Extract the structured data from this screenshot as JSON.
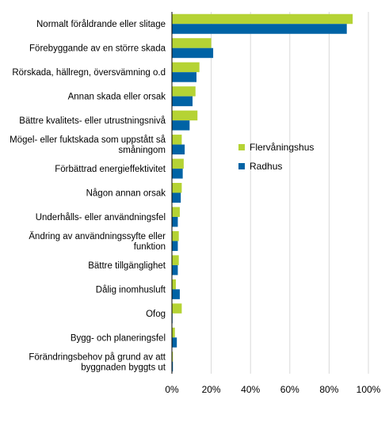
{
  "chart_data": {
    "type": "bar",
    "orientation": "horizontal",
    "categories": [
      "Normalt föråldrande eller slitage",
      "Förebyggande av en större skada",
      "Rörskada, hällregn, översvämning o.d",
      "Annan skada eller orsak",
      "Bättre kvalitets- eller utrustningsnivå",
      "Mögel- eller fuktskada som uppstått så småningom",
      "Förbättrad energieffektivitet",
      "Någon annan orsak",
      "Underhålls- eller användningsfel",
      "Ändring av användningssyfte eller funktion",
      "Bättre tillgänglighet",
      "Dålig inomhusluft",
      "Ofog",
      "Bygg- och planeringsfel",
      "Förändringsbehov på grund av att byggnaden byggts ut"
    ],
    "category_lines": [
      [
        "Normalt föråldrande eller slitage"
      ],
      [
        "Förebyggande av en större skada"
      ],
      [
        "Rörskada, hällregn, översvämning o.d"
      ],
      [
        "Annan skada eller orsak"
      ],
      [
        "Bättre kvalitets- eller utrustningsnivå"
      ],
      [
        "Mögel- eller fuktskada som uppstått så",
        "småningom"
      ],
      [
        "Förbättrad energieffektivitet"
      ],
      [
        "Någon annan orsak"
      ],
      [
        "Underhålls- eller användningsfel"
      ],
      [
        "Ändring av användningssyfte eller",
        "funktion"
      ],
      [
        "Bättre tillgänglighet"
      ],
      [
        "Dålig inomhusluft"
      ],
      [
        "Ofog"
      ],
      [
        "Bygg- och planeringsfel"
      ],
      [
        "Förändringsbehov på grund av att",
        "byggnaden byggts ut"
      ]
    ],
    "series": [
      {
        "name": "Flervåningshus",
        "color": "#b5d334",
        "values": [
          92,
          20,
          14,
          12,
          13,
          5,
          6,
          5,
          4,
          3.5,
          3.5,
          2,
          5,
          1.5,
          0.5
        ]
      },
      {
        "name": "Radhus",
        "color": "#0063a5",
        "values": [
          89,
          21,
          12.5,
          10.5,
          9,
          6.5,
          5.5,
          4.5,
          3,
          3,
          3,
          4,
          0.3,
          2.5,
          0.5
        ]
      }
    ],
    "xlim": [
      0,
      100
    ],
    "xticks": [
      0,
      20,
      40,
      60,
      80,
      100
    ],
    "xtick_labels": [
      "0%",
      "20%",
      "40%",
      "60%",
      "80%",
      "100%"
    ],
    "grid": true,
    "legend_position": "right-middle"
  }
}
